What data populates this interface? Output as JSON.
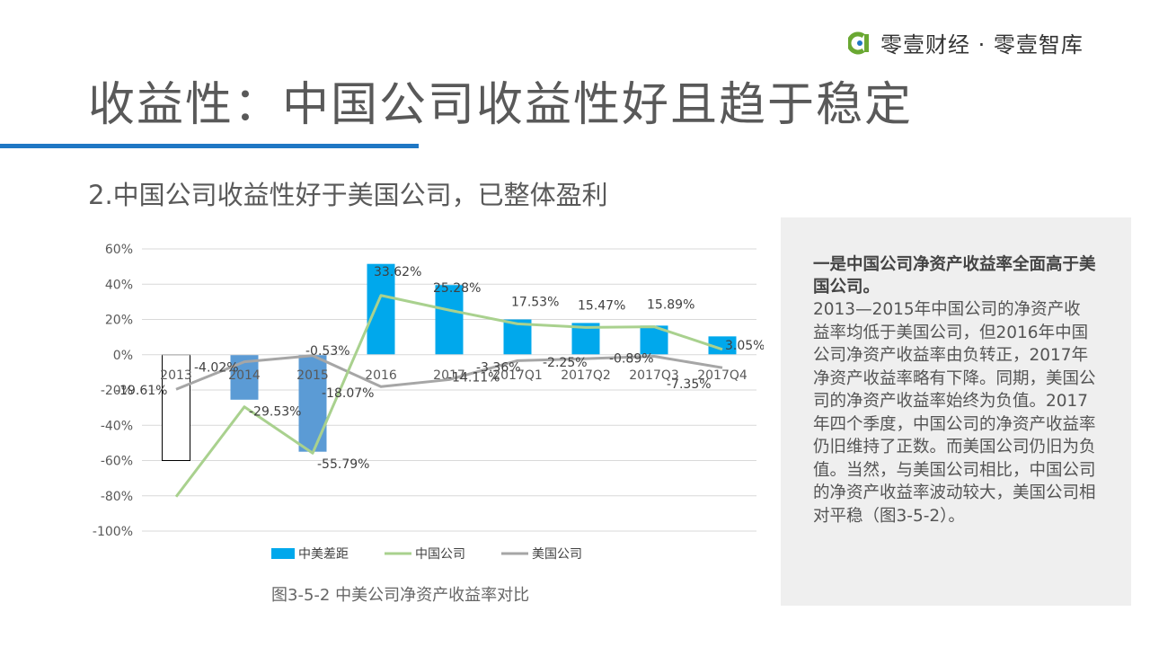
{
  "brand": {
    "logo_text": "零壹财经 · 零壹智库",
    "accent_color": "#1f77c4"
  },
  "page": {
    "title": "收益性：中国公司收益性好且趋于稳定",
    "subtitle": "2.中国公司收益性好于美国公司，已整体盈利",
    "caption": "图3-5-2 中美公司净资产收益率对比"
  },
  "panel": {
    "heading": "一是中国公司净资产收益率全面高于美国公司。",
    "body": "2013—2015年中国公司的净资产收益率均低于美国公司，但2016年中国公司净资产收益率由负转正，2017年净资产收益率略有下降。同期，美国公司的净资产收益率始终为负值。2017年四个季度，中国公司的净资产收益率仍旧维持了正数。而美国公司仍旧为负值。当然，与美国公司相比，中国公司的净资产收益率波动较大，美国公司相对平稳（图3-5-2）。"
  },
  "chart_data": {
    "type": "bar",
    "categories": [
      "2013",
      "2014",
      "2015",
      "2016",
      "2017",
      "2017Q1",
      "2017Q2",
      "2017Q3",
      "2017Q4"
    ],
    "ylim": [
      -100,
      60
    ],
    "yticks": [
      60,
      40,
      20,
      0,
      -20,
      -40,
      -60,
      -80,
      -100
    ],
    "ytick_labels": [
      "60%",
      "40%",
      "20%",
      "0%",
      "-20%",
      "-40%",
      "-60%",
      "-80%",
      "-100%"
    ],
    "grid": true,
    "legend_position": "bottom",
    "series": [
      {
        "name": "中美差距",
        "type": "bar",
        "color": "#00a8ec",
        "values": [
          -60.0,
          -25.5,
          -55.0,
          51.5,
          39.5,
          20.0,
          18.0,
          16.5,
          10.4
        ]
      },
      {
        "name": "中国公司",
        "type": "line",
        "color": "#a9d18e",
        "values": [
          -80.5,
          -29.53,
          -55.79,
          33.62,
          25.28,
          17.53,
          15.47,
          15.89,
          3.05
        ],
        "labels": [
          "",
          "-29.53%",
          "-55.79%",
          "33.62%",
          "25.28%",
          "17.53%",
          "15.47%",
          "15.89%",
          "3.05%"
        ]
      },
      {
        "name": "美国公司",
        "type": "line",
        "color": "#a6a6a6",
        "values": [
          -19.61,
          -4.02,
          -0.53,
          -18.07,
          -14.11,
          -3.36,
          -2.25,
          -0.89,
          -7.35
        ],
        "labels": [
          "-19.61%",
          "-4.02%",
          "-0.53%",
          "-18.07%",
          "-14.11%",
          "-3.36%",
          "-2.25%",
          "-0.89%",
          "-7.35%"
        ]
      }
    ]
  }
}
